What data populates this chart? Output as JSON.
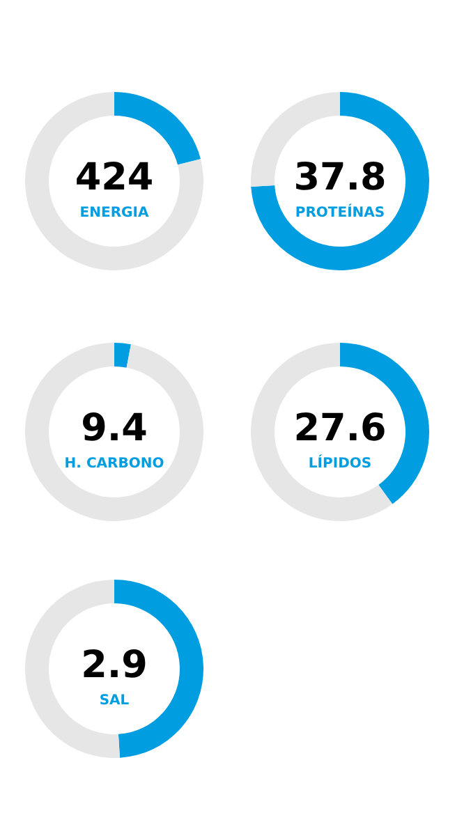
{
  "chart_data": [
    {
      "type": "donut",
      "title": "424",
      "subtitle": "ENERGIA",
      "categories": [
        null,
        null
      ],
      "values": [
        21,
        79
      ],
      "colors": [
        "#009ee0",
        "#e6e6e6"
      ]
    },
    {
      "type": "donut",
      "title": "37.8",
      "subtitle": "PROTEÍNAS",
      "categories": [
        null,
        null
      ],
      "values": [
        74,
        26
      ],
      "colors": [
        "#009ee0",
        "#e6e6e6"
      ]
    },
    {
      "type": "donut",
      "title": "9.4",
      "subtitle": "H. CARBONO",
      "categories": [
        null,
        null
      ],
      "values": [
        3,
        97
      ],
      "colors": [
        "#009ee0",
        "#e6e6e6"
      ]
    },
    {
      "type": "donut",
      "title": "27.6",
      "subtitle": "LÍPIDOS",
      "categories": [
        null,
        null
      ],
      "values": [
        40,
        60
      ],
      "colors": [
        "#009ee0",
        "#e6e6e6"
      ]
    },
    {
      "type": "donut",
      "title": "2.9",
      "subtitle": "SAL",
      "categories": [
        null,
        null
      ],
      "values": [
        49,
        51
      ],
      "colors": [
        "#009ee0",
        "#e6e6e6"
      ]
    }
  ]
}
